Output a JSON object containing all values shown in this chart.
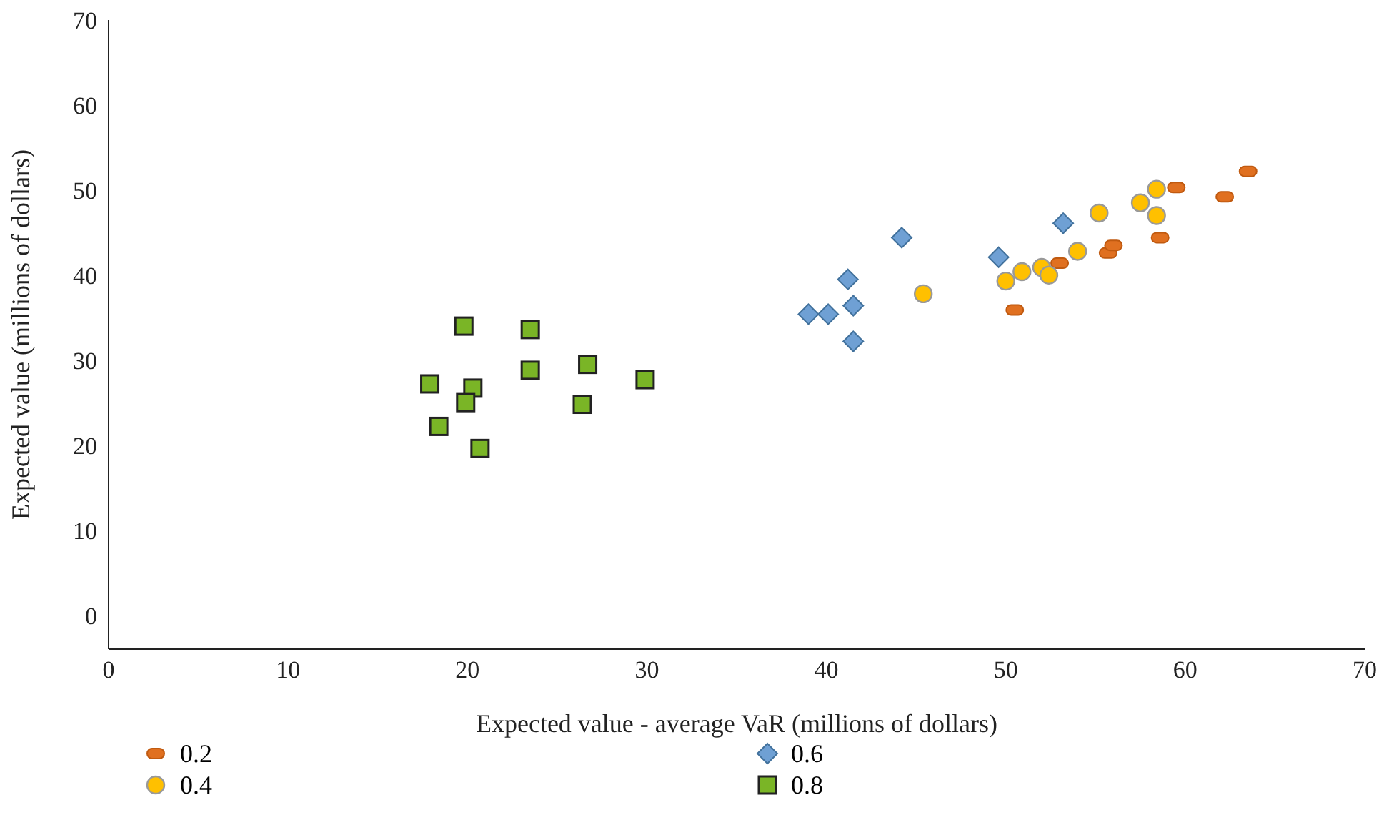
{
  "chart_data": {
    "type": "scatter",
    "xlabel": "Expected value - average VaR (millions of dollars)",
    "ylabel": "Expected value (millions of dollars)",
    "xlim": [
      0,
      70
    ],
    "xticks": [
      0,
      10,
      20,
      30,
      40,
      50,
      60,
      70
    ],
    "ylim": [
      -4,
      70
    ],
    "yticks": [
      0,
      10,
      20,
      30,
      40,
      50,
      60,
      70
    ],
    "grid": false,
    "legend": "bottom left",
    "series": [
      {
        "name": "0.2",
        "color": "#e07020",
        "x": [
          50.5,
          53.0,
          55.7,
          56.0,
          58.6,
          59.5,
          62.2,
          63.5
        ],
        "values": [
          35.9,
          41.4,
          42.6,
          43.5,
          44.4,
          50.3,
          49.2,
          52.2
        ]
      },
      {
        "name": "0.4",
        "color": "#ffc000",
        "marker": "circle",
        "x": [
          45.4,
          50.0,
          50.9,
          52.0,
          52.4,
          54.0,
          55.2,
          57.5,
          58.4,
          58.4
        ],
        "values": [
          37.8,
          39.3,
          40.4,
          40.9,
          40.0,
          42.8,
          47.3,
          48.5,
          50.1,
          47.0
        ]
      },
      {
        "name": "0.6",
        "color": "#6fa0d4",
        "marker": "diamond",
        "x": [
          39.0,
          40.1,
          41.2,
          41.5,
          41.5,
          44.2,
          49.6,
          53.2
        ],
        "values": [
          35.4,
          35.4,
          39.5,
          36.4,
          32.2,
          44.4,
          42.1,
          46.1
        ]
      },
      {
        "name": "0.8",
        "color": "#7ab526",
        "marker": "square",
        "x": [
          17.9,
          19.8,
          23.5,
          20.3,
          19.9,
          23.5,
          26.7,
          29.9,
          26.4,
          18.4,
          20.7
        ],
        "values": [
          27.2,
          34.0,
          33.6,
          26.7,
          25.0,
          28.8,
          29.5,
          27.7,
          24.8,
          22.2,
          19.6
        ]
      }
    ]
  }
}
